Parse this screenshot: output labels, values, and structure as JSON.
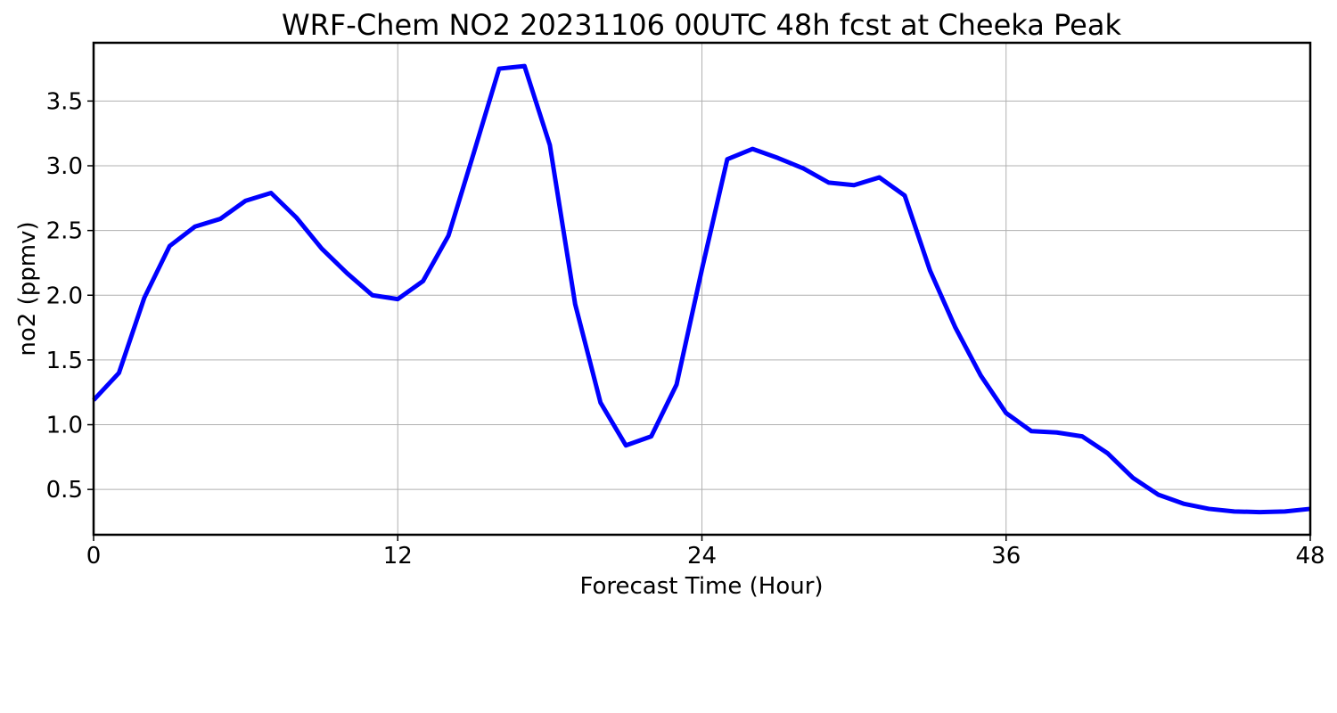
{
  "chart_data": {
    "type": "line",
    "title": "WRF-Chem NO2  20231106 00UTC 48h fcst at Cheeka Peak",
    "xlabel": "Forecast Time (Hour)",
    "ylabel": "no2  (ppmv)",
    "xlim": [
      0,
      48
    ],
    "ylim": [
      0.15,
      3.95
    ],
    "x_ticks": [
      0,
      12,
      24,
      36,
      48
    ],
    "x_tick_labels": [
      "0",
      "12",
      "24",
      "36",
      "48"
    ],
    "y_ticks": [
      0.5,
      1.0,
      1.5,
      2.0,
      2.5,
      3.0,
      3.5
    ],
    "y_tick_labels": [
      "0.5",
      "1.0",
      "1.5",
      "2.0",
      "2.5",
      "3.0",
      "3.5"
    ],
    "grid": true,
    "series": [
      {
        "color": "#0000ff",
        "x": [
          0,
          1,
          2,
          3,
          4,
          5,
          6,
          7,
          8,
          9,
          10,
          11,
          12,
          13,
          14,
          15,
          16,
          17,
          18,
          19,
          20,
          21,
          22,
          23,
          24,
          25,
          26,
          27,
          28,
          29,
          30,
          31,
          32,
          33,
          34,
          35,
          36,
          37,
          38,
          39,
          40,
          41,
          42,
          43,
          44,
          45,
          46,
          47,
          48
        ],
        "values": [
          1.19,
          1.4,
          1.98,
          2.38,
          2.53,
          2.59,
          2.73,
          2.79,
          2.6,
          2.36,
          2.17,
          2.0,
          1.97,
          2.11,
          2.46,
          3.1,
          3.75,
          3.77,
          3.16,
          1.93,
          1.17,
          0.84,
          0.91,
          1.31,
          2.2,
          3.05,
          3.13,
          3.06,
          2.98,
          2.87,
          2.85,
          2.91,
          2.77,
          2.19,
          1.75,
          1.38,
          1.09,
          0.95,
          0.94,
          0.91,
          0.78,
          0.59,
          0.46,
          0.39,
          0.35,
          0.33,
          0.325,
          0.33,
          0.35
        ]
      }
    ]
  }
}
